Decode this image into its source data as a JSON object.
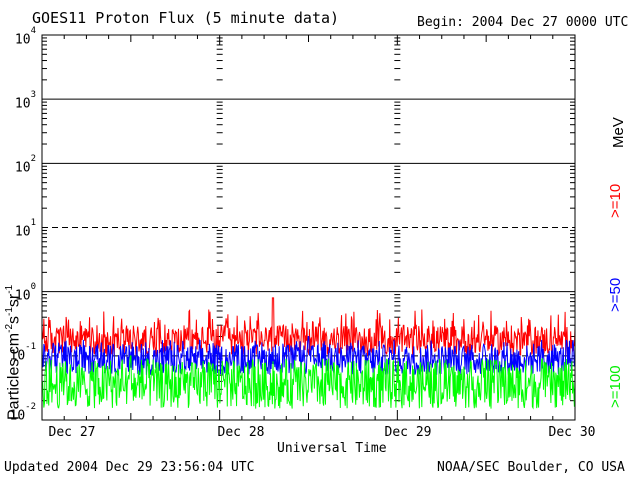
{
  "header": {
    "title": "GOES11 Proton Flux (5 minute data)",
    "begin": "Begin: 2004 Dec 27 0000 UTC"
  },
  "footer": {
    "updated": "Updated 2004 Dec 29 23:56:04 UTC",
    "credit": "NOAA/SEC Boulder, CO USA"
  },
  "chart_data": {
    "type": "line",
    "title": "GOES11 Proton Flux (5 minute data)",
    "xlabel": "Universal Time",
    "ylabel": "Particles cm-2s-1sr-1",
    "ylabel_parts": {
      "base": "Particles cm",
      "e1": "-2",
      "s": "s",
      "e2": "-1",
      "sr": "sr",
      "e3": "-1"
    },
    "yscale": "log",
    "ylim": [
      0.01,
      10000
    ],
    "xlim_days": [
      0,
      3
    ],
    "x_ticks": [
      "Dec 27",
      "Dec 28",
      "Dec 29",
      "Dec 30"
    ],
    "y_ticks": [
      {
        "base": "10",
        "exp": "4"
      },
      {
        "base": "10",
        "exp": "3"
      },
      {
        "base": "10",
        "exp": "2"
      },
      {
        "base": "10",
        "exp": "1"
      },
      {
        "base": "10",
        "exp": "0"
      },
      {
        "base": "10",
        "exp": "-1"
      },
      {
        "base": "10",
        "exp": "-2"
      }
    ],
    "dashed_thresholds": [
      10,
      0.1
    ],
    "unit_label": "MeV",
    "series": [
      {
        "name": ">=10",
        "color": "#ff0000",
        "typical_range": [
          0.1,
          0.3
        ],
        "peak": 0.8,
        "peak_day": 1.3
      },
      {
        "name": ">=50",
        "color": "#0000ff",
        "typical_range": [
          0.05,
          0.15
        ],
        "peak": 0.2,
        "peak_day": 1.5
      },
      {
        "name": ">=100",
        "color": "#00ff00",
        "typical_range": [
          0.015,
          0.08
        ],
        "peak": 0.1,
        "peak_day": 0.5
      }
    ]
  }
}
